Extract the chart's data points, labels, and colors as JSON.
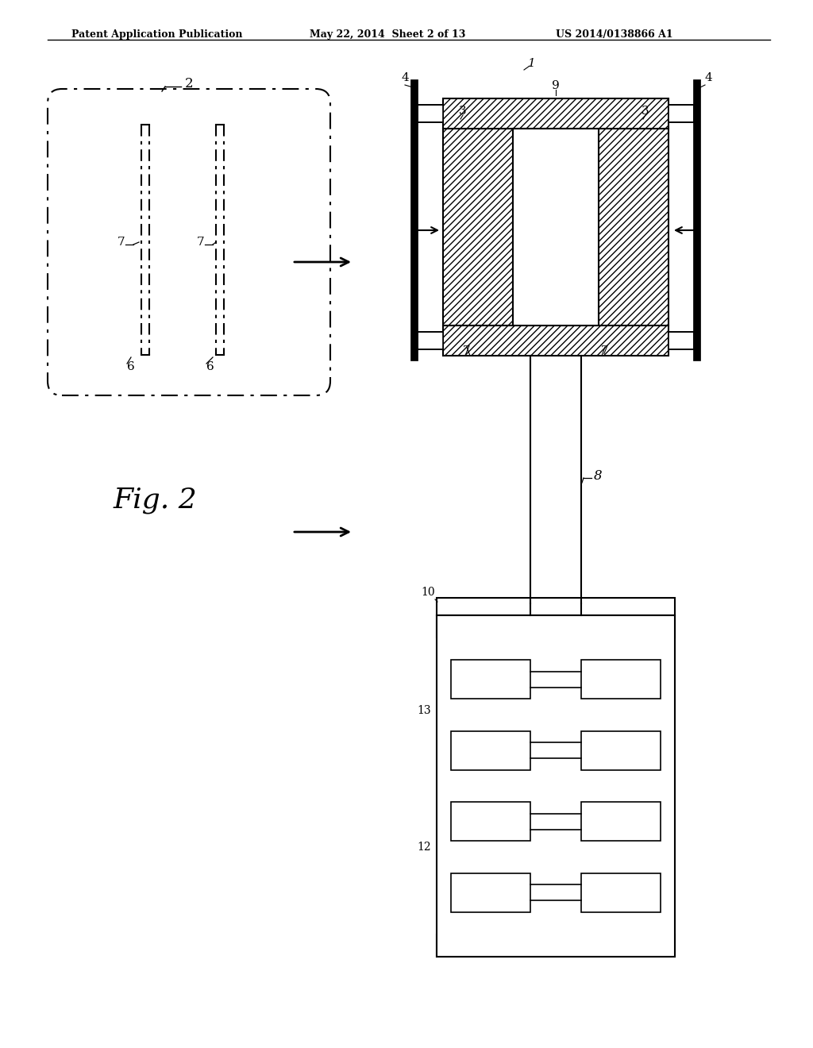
{
  "header_left": "Patent Application Publication",
  "header_mid": "May 22, 2014  Sheet 2 of 13",
  "header_right": "US 2014/0138866 A1",
  "fig_label": "Fig. 2",
  "bg_color": "#ffffff",
  "line_color": "#000000"
}
